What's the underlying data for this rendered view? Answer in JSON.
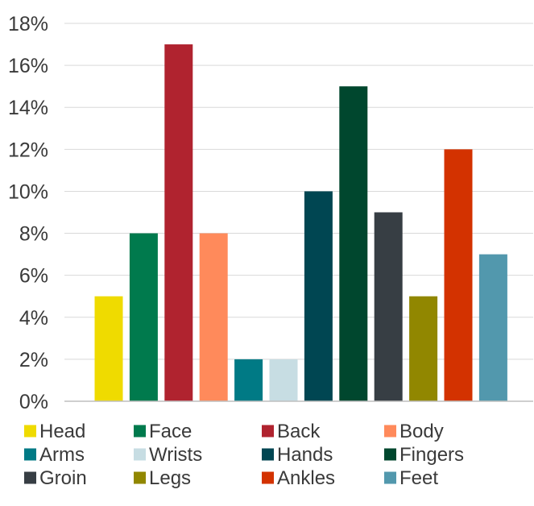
{
  "chart_data": {
    "type": "bar",
    "categories": [
      "Head",
      "Face",
      "Back",
      "Body",
      "Arms",
      "Wrists",
      "Hands",
      "Fingers",
      "Groin",
      "Legs",
      "Ankles",
      "Feet"
    ],
    "values": [
      5,
      8,
      17,
      8,
      2,
      2,
      10,
      15,
      9,
      5,
      12,
      7
    ],
    "colors": [
      "#efdb00",
      "#007a4d",
      "#b0232f",
      "#ff8a5b",
      "#007a85",
      "#c7dde3",
      "#004652",
      "#00472e",
      "#373e44",
      "#918700",
      "#d33200",
      "#5298ad"
    ],
    "yticks": [
      "0%",
      "2%",
      "4%",
      "6%",
      "8%",
      "10%",
      "12%",
      "14%",
      "16%",
      "18%"
    ],
    "ylim": [
      0,
      18
    ],
    "grid": true,
    "legend": "bottom",
    "unit": "%"
  }
}
